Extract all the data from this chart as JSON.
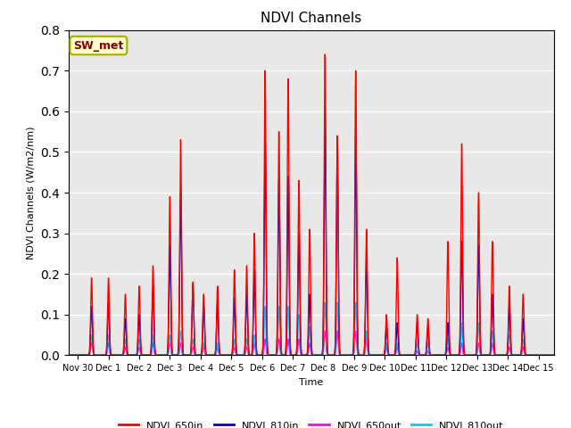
{
  "title": "NDVI Channels",
  "ylabel": "NDVI Channels (W/m2/nm)",
  "xlabel": "Time",
  "annotation": "SW_met",
  "ylim": [
    0.0,
    0.8
  ],
  "xlim_days": [
    -0.3,
    15.5
  ],
  "tick_labels": [
    "Nov 30",
    "Dec 1",
    "Dec 2",
    "Dec 3",
    "Dec 4",
    "Dec 5",
    "Dec 6",
    "Dec 7",
    "Dec 8",
    "Dec 9",
    "Dec 10",
    "Dec 11",
    "Dec 12",
    "Dec 13",
    "Dec 14",
    "Dec 15"
  ],
  "tick_positions": [
    0,
    1,
    2,
    3,
    4,
    5,
    6,
    7,
    8,
    9,
    10,
    11,
    12,
    13,
    14,
    15
  ],
  "colors": {
    "NDVI_650in": "#ff0000",
    "NDVI_810in": "#0000cc",
    "NDVI_650out": "#ff00ff",
    "NDVI_810out": "#00ccff"
  },
  "background_color": "#e8e8e8",
  "annotation_box_facecolor": "#ffffcc",
  "annotation_box_edgecolor": "#aaaa00",
  "annotation_text_color": "#880000",
  "peaks": [
    {
      "day": 0.45,
      "r650in": 0.19,
      "r810in": 0.12,
      "r650out": 0.03,
      "r810out": 0.05
    },
    {
      "day": 1.0,
      "r650in": 0.19,
      "r810in": 0.13,
      "r650out": 0.03,
      "r810out": 0.05
    },
    {
      "day": 1.55,
      "r650in": 0.15,
      "r810in": 0.09,
      "r650out": 0.02,
      "r810out": 0.04
    },
    {
      "day": 2.0,
      "r650in": 0.17,
      "r810in": 0.1,
      "r650out": 0.02,
      "r810out": 0.04
    },
    {
      "day": 2.45,
      "r650in": 0.22,
      "r810in": 0.16,
      "r650out": 0.03,
      "r810out": 0.05
    },
    {
      "day": 3.0,
      "r650in": 0.39,
      "r810in": 0.27,
      "r650out": 0.03,
      "r810out": 0.05
    },
    {
      "day": 3.35,
      "r650in": 0.53,
      "r810in": 0.4,
      "r650out": 0.03,
      "r810out": 0.06
    },
    {
      "day": 3.75,
      "r650in": 0.18,
      "r810in": 0.17,
      "r650out": 0.02,
      "r810out": 0.04
    },
    {
      "day": 4.1,
      "r650in": 0.15,
      "r810in": 0.12,
      "r650out": 0.02,
      "r810out": 0.03
    },
    {
      "day": 4.55,
      "r650in": 0.17,
      "r810in": 0.13,
      "r650out": 0.02,
      "r810out": 0.03
    },
    {
      "day": 5.1,
      "r650in": 0.21,
      "r810in": 0.14,
      "r650out": 0.02,
      "r810out": 0.04
    },
    {
      "day": 5.5,
      "r650in": 0.22,
      "r810in": 0.15,
      "r650out": 0.02,
      "r810out": 0.04
    },
    {
      "day": 5.75,
      "r650in": 0.3,
      "r810in": 0.21,
      "r650out": 0.03,
      "r810out": 0.05
    },
    {
      "day": 6.1,
      "r650in": 0.7,
      "r810in": 0.53,
      "r650out": 0.04,
      "r810out": 0.12
    },
    {
      "day": 6.55,
      "r650in": 0.55,
      "r810in": 0.43,
      "r650out": 0.04,
      "r810out": 0.12
    },
    {
      "day": 6.85,
      "r650in": 0.68,
      "r810in": 0.44,
      "r650out": 0.04,
      "r810out": 0.12
    },
    {
      "day": 7.2,
      "r650in": 0.43,
      "r810in": 0.3,
      "r650out": 0.04,
      "r810out": 0.1
    },
    {
      "day": 7.55,
      "r650in": 0.31,
      "r810in": 0.15,
      "r650out": 0.03,
      "r810out": 0.07
    },
    {
      "day": 8.05,
      "r650in": 0.74,
      "r810in": 0.59,
      "r650out": 0.06,
      "r810out": 0.13
    },
    {
      "day": 8.45,
      "r650in": 0.54,
      "r810in": 0.53,
      "r650out": 0.06,
      "r810out": 0.13
    },
    {
      "day": 9.05,
      "r650in": 0.7,
      "r810in": 0.55,
      "r650out": 0.06,
      "r810out": 0.13
    },
    {
      "day": 9.4,
      "r650in": 0.31,
      "r810in": 0.25,
      "r650out": 0.04,
      "r810out": 0.06
    },
    {
      "day": 10.05,
      "r650in": 0.1,
      "r810in": 0.07,
      "r650out": 0.02,
      "r810out": 0.03
    },
    {
      "day": 10.4,
      "r650in": 0.24,
      "r810in": 0.08,
      "r650out": 0.02,
      "r810out": 0.03
    },
    {
      "day": 11.05,
      "r650in": 0.1,
      "r810in": 0.08,
      "r650out": 0.01,
      "r810out": 0.03
    },
    {
      "day": 11.4,
      "r650in": 0.09,
      "r810in": 0.07,
      "r650out": 0.01,
      "r810out": 0.03
    },
    {
      "day": 12.05,
      "r650in": 0.28,
      "r810in": 0.08,
      "r650out": 0.02,
      "r810out": 0.04
    },
    {
      "day": 12.5,
      "r650in": 0.52,
      "r810in": 0.28,
      "r650out": 0.03,
      "r810out": 0.08
    },
    {
      "day": 13.05,
      "r650in": 0.4,
      "r810in": 0.27,
      "r650out": 0.03,
      "r810out": 0.08
    },
    {
      "day": 13.5,
      "r650in": 0.28,
      "r810in": 0.15,
      "r650out": 0.03,
      "r810out": 0.06
    },
    {
      "day": 14.05,
      "r650in": 0.17,
      "r810in": 0.12,
      "r650out": 0.02,
      "r810out": 0.05
    },
    {
      "day": 14.5,
      "r650in": 0.15,
      "r810in": 0.09,
      "r650out": 0.02,
      "r810out": 0.04
    }
  ]
}
